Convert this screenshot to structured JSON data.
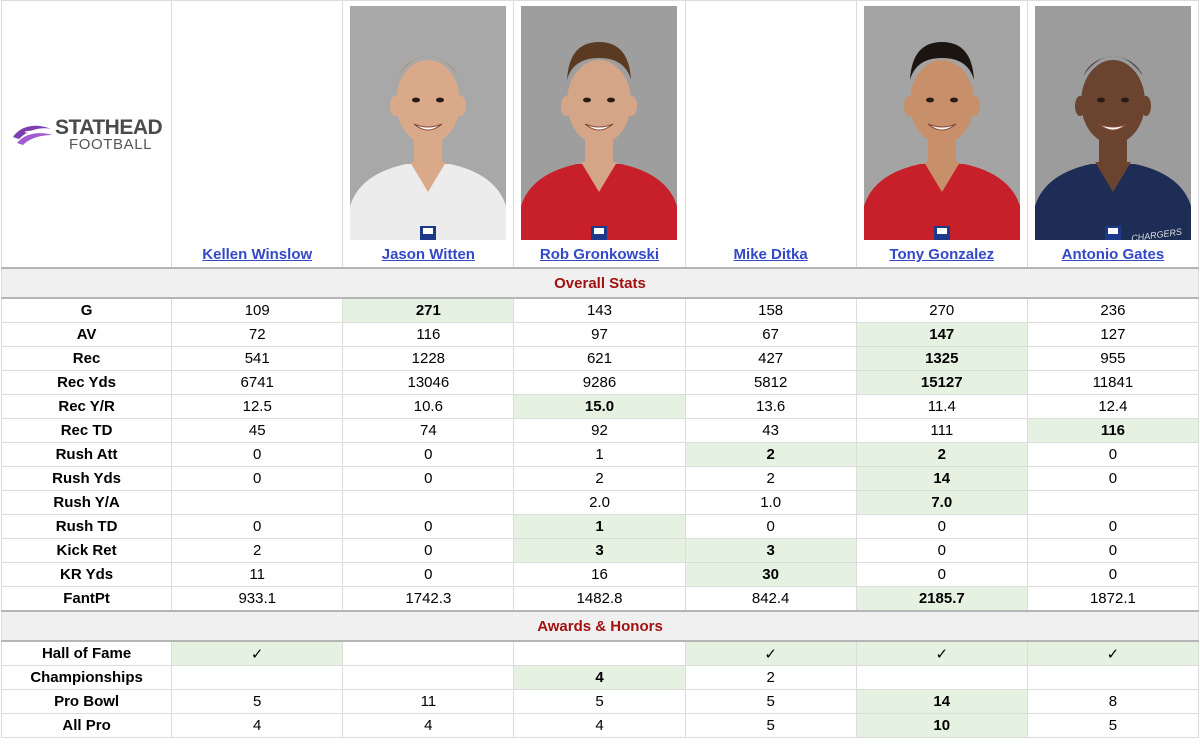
{
  "logo": {
    "main": "STATHEAD",
    "sub": "FOOTBALL"
  },
  "players": [
    {
      "name": "Kellen Winslow",
      "photo": null
    },
    {
      "name": "Jason Witten",
      "photo": {
        "bg": "#a8a8a8",
        "skin": "#d9a98a",
        "hair": "#b08a63",
        "jersey": "#ececec",
        "style": "bald"
      }
    },
    {
      "name": "Rob Gronkowski",
      "photo": {
        "bg": "#9e9e9e",
        "skin": "#d5a588",
        "hair": "#5a3b22",
        "jersey": "#c8202a",
        "style": "short"
      }
    },
    {
      "name": "Mike Ditka",
      "photo": null
    },
    {
      "name": "Tony Gonzalez",
      "photo": {
        "bg": "#a4a4a4",
        "skin": "#c78f6a",
        "hair": "#1c1410",
        "jersey": "#c8202a",
        "style": "short"
      }
    },
    {
      "name": "Antonio Gates",
      "photo": {
        "bg": "#9c9c9c",
        "skin": "#6b4430",
        "hair": "#1a1010",
        "jersey": "#1d2d55",
        "style": "bald",
        "jersey_text": "CHARGERS"
      }
    }
  ],
  "sections": [
    {
      "title": "Overall Stats",
      "rows": [
        {
          "label": "G",
          "values": [
            "109",
            "271",
            "143",
            "158",
            "270",
            "236"
          ],
          "hl": [
            1
          ]
        },
        {
          "label": "AV",
          "values": [
            "72",
            "116",
            "97",
            "67",
            "147",
            "127"
          ],
          "hl": [
            4
          ]
        },
        {
          "label": "Rec",
          "values": [
            "541",
            "1228",
            "621",
            "427",
            "1325",
            "955"
          ],
          "hl": [
            4
          ]
        },
        {
          "label": "Rec Yds",
          "values": [
            "6741",
            "13046",
            "9286",
            "5812",
            "15127",
            "11841"
          ],
          "hl": [
            4
          ]
        },
        {
          "label": "Rec Y/R",
          "values": [
            "12.5",
            "10.6",
            "15.0",
            "13.6",
            "11.4",
            "12.4"
          ],
          "hl": [
            2
          ]
        },
        {
          "label": "Rec TD",
          "values": [
            "45",
            "74",
            "92",
            "43",
            "111",
            "116"
          ],
          "hl": [
            5
          ]
        },
        {
          "label": "Rush Att",
          "values": [
            "0",
            "0",
            "1",
            "2",
            "2",
            "0"
          ],
          "hl": [
            3,
            4
          ]
        },
        {
          "label": "Rush Yds",
          "values": [
            "0",
            "0",
            "2",
            "2",
            "14",
            "0"
          ],
          "hl": [
            4
          ]
        },
        {
          "label": "Rush Y/A",
          "values": [
            "",
            "",
            "2.0",
            "1.0",
            "7.0",
            ""
          ],
          "hl": [
            4
          ]
        },
        {
          "label": "Rush TD",
          "values": [
            "0",
            "0",
            "1",
            "0",
            "0",
            "0"
          ],
          "hl": [
            2
          ]
        },
        {
          "label": "Kick Ret",
          "values": [
            "2",
            "0",
            "3",
            "3",
            "0",
            "0"
          ],
          "hl": [
            2,
            3
          ]
        },
        {
          "label": "KR Yds",
          "values": [
            "11",
            "0",
            "16",
            "30",
            "0",
            "0"
          ],
          "hl": [
            3
          ]
        },
        {
          "label": "FantPt",
          "values": [
            "933.1",
            "1742.3",
            "1482.8",
            "842.4",
            "2185.7",
            "1872.1"
          ],
          "hl": [
            4
          ]
        }
      ]
    },
    {
      "title": "Awards & Honors",
      "rows": [
        {
          "label": "Hall of Fame",
          "values": [
            "✓",
            "",
            "",
            "✓",
            "✓",
            "✓"
          ],
          "hl": [
            0,
            3,
            4,
            5
          ],
          "plain": true
        },
        {
          "label": "Championships",
          "values": [
            "",
            "",
            "4",
            "2",
            "",
            ""
          ],
          "hl": [
            2
          ]
        },
        {
          "label": "Pro Bowl",
          "values": [
            "5",
            "11",
            "5",
            "5",
            "14",
            "8"
          ],
          "hl": [
            4
          ]
        },
        {
          "label": "All Pro",
          "values": [
            "4",
            "4",
            "4",
            "5",
            "10",
            "5"
          ],
          "hl": [
            4
          ]
        }
      ]
    }
  ]
}
